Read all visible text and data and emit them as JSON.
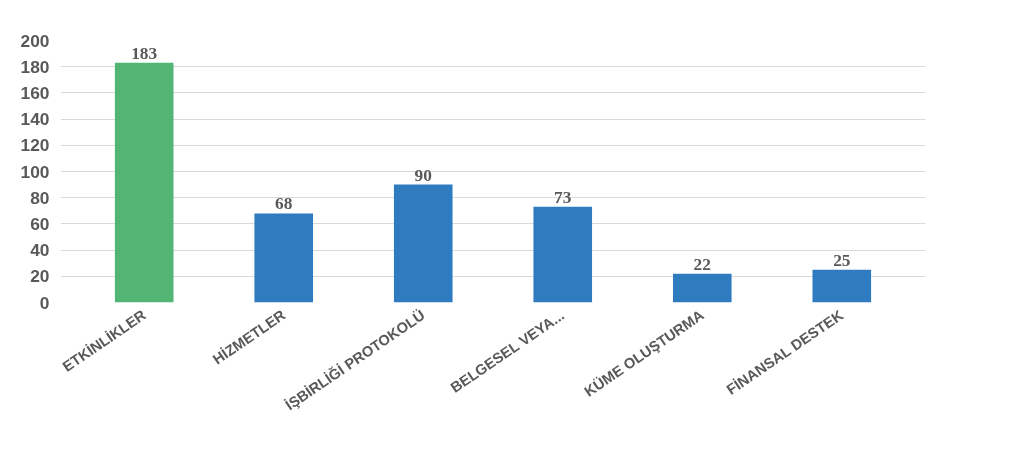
{
  "chart_data": {
    "type": "bar",
    "categories": [
      "ETKİNLİKLER",
      "HİZMETLER",
      "İŞBİRLİĞİ PROTOKOLÜ",
      "BELGESEL VEYA...",
      "KÜME OLUŞTURMA",
      "FİNANSAL DESTEK"
    ],
    "values": [
      183,
      68,
      90,
      73,
      22,
      25
    ],
    "colors": [
      "#52b574",
      "#2e7bbf",
      "#2e7bbf",
      "#2e7bbf",
      "#2e7bbf",
      "#2e7bbf"
    ],
    "ylim": [
      0,
      200
    ],
    "yticks": [
      0,
      20,
      40,
      60,
      80,
      100,
      120,
      140,
      160,
      180,
      200
    ],
    "grid": "y",
    "data_labels": true
  }
}
